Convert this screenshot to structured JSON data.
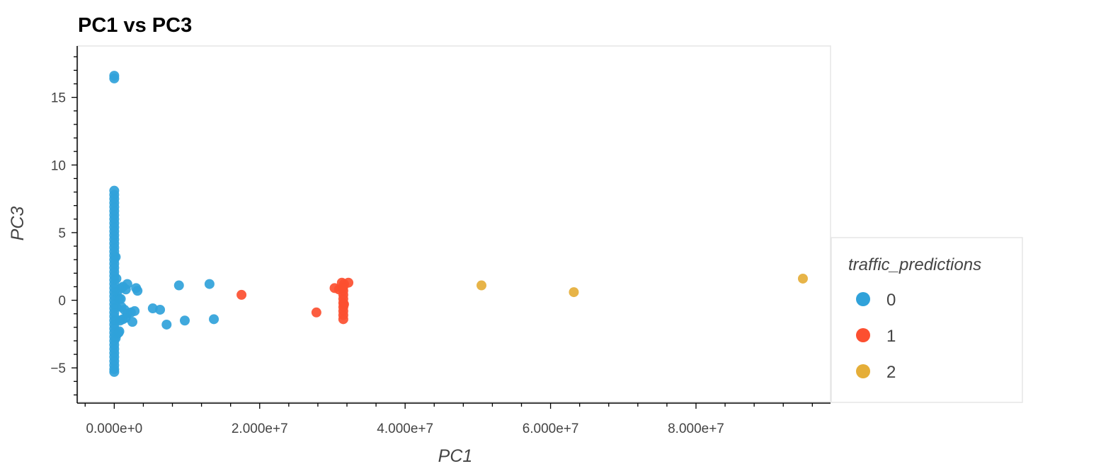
{
  "chart_data": {
    "type": "scatter",
    "title": "PC1 vs PC3",
    "xlabel": "PC1",
    "ylabel": "PC3",
    "xlim": [
      -5000000,
      98500000
    ],
    "ylim": [
      -7.5,
      18.8
    ],
    "x_ticks": [
      {
        "value": 0,
        "label": "0.000e+0"
      },
      {
        "value": 20000000,
        "label": "2.000e+7"
      },
      {
        "value": 40000000,
        "label": "4.000e+7"
      },
      {
        "value": 60000000,
        "label": "6.000e+7"
      },
      {
        "value": 80000000,
        "label": "8.000e+7"
      }
    ],
    "y_ticks": [
      {
        "value": -5,
        "label": "−5"
      },
      {
        "value": 0,
        "label": "0"
      },
      {
        "value": 5,
        "label": "5"
      },
      {
        "value": 10,
        "label": "10"
      },
      {
        "value": 15,
        "label": "15"
      }
    ],
    "grid": false,
    "legend": {
      "title": "traffic_predictions",
      "position": "right"
    },
    "series": [
      {
        "name": "0",
        "color": "#30a2da",
        "points": [
          [
            0,
            16.6
          ],
          [
            0,
            16.4
          ],
          [
            0,
            8.1
          ],
          [
            0,
            7.8
          ],
          [
            0,
            7.5
          ],
          [
            0,
            7.2
          ],
          [
            0,
            6.9
          ],
          [
            0,
            6.6
          ],
          [
            0,
            6.3
          ],
          [
            0,
            6.0
          ],
          [
            0,
            5.7
          ],
          [
            0,
            5.4
          ],
          [
            0,
            5.1
          ],
          [
            0,
            4.8
          ],
          [
            0,
            4.5
          ],
          [
            0,
            4.2
          ],
          [
            0,
            3.9
          ],
          [
            0,
            3.6
          ],
          [
            0,
            3.3
          ],
          [
            0,
            3.0
          ],
          [
            0,
            2.7
          ],
          [
            0,
            2.4
          ],
          [
            0,
            2.1
          ],
          [
            0,
            1.8
          ],
          [
            0,
            1.5
          ],
          [
            0,
            1.2
          ],
          [
            0,
            0.9
          ],
          [
            0,
            0.6
          ],
          [
            0,
            0.3
          ],
          [
            0,
            0.0
          ],
          [
            0,
            -0.3
          ],
          [
            0,
            -0.6
          ],
          [
            0,
            -0.9
          ],
          [
            0,
            -1.2
          ],
          [
            0,
            -1.5
          ],
          [
            0,
            -1.8
          ],
          [
            0,
            -2.1
          ],
          [
            0,
            -2.4
          ],
          [
            0,
            -2.7
          ],
          [
            0,
            -3.0
          ],
          [
            0,
            -3.3
          ],
          [
            0,
            -3.6
          ],
          [
            0,
            -3.9
          ],
          [
            0,
            -4.2
          ],
          [
            0,
            -4.5
          ],
          [
            0,
            -4.8
          ],
          [
            0,
            -5.1
          ],
          [
            0,
            -5.3
          ],
          [
            200000,
            3.2
          ],
          [
            300000,
            1.6
          ],
          [
            400000,
            0.6
          ],
          [
            300000,
            -0.5
          ],
          [
            250000,
            -1.5
          ],
          [
            400000,
            -2.5
          ],
          [
            200000,
            -2.8
          ],
          [
            600000,
            -2.4
          ],
          [
            700000,
            -2.3
          ],
          [
            1000000,
            0.9
          ],
          [
            1200000,
            1.0
          ],
          [
            1800000,
            1.2
          ],
          [
            1600000,
            0.8
          ],
          [
            500000,
            0.2
          ],
          [
            700000,
            0.1
          ],
          [
            900000,
            0.1
          ],
          [
            1000000,
            -0.5
          ],
          [
            1400000,
            -0.7
          ],
          [
            1800000,
            -1.0
          ],
          [
            1600000,
            -1.3
          ],
          [
            2300000,
            -0.9
          ],
          [
            2800000,
            -0.8
          ],
          [
            2500000,
            -1.6
          ],
          [
            1200000,
            -1.4
          ],
          [
            800000,
            -1.5
          ],
          [
            3000000,
            0.9
          ],
          [
            3200000,
            0.7
          ],
          [
            5300000,
            -0.6
          ],
          [
            6300000,
            -0.7
          ],
          [
            7200000,
            -1.8
          ],
          [
            9700000,
            -1.5
          ],
          [
            8900000,
            1.1
          ],
          [
            13100000,
            1.2
          ],
          [
            13700000,
            -1.4
          ]
        ]
      },
      {
        "name": "1",
        "color": "#fc4f30",
        "points": [
          [
            17500000,
            0.4
          ],
          [
            27800000,
            -0.9
          ],
          [
            30300000,
            0.9
          ],
          [
            30900000,
            0.8
          ],
          [
            31300000,
            1.3
          ],
          [
            31600000,
            1.2
          ],
          [
            32200000,
            1.3
          ],
          [
            31500000,
            1.0
          ],
          [
            31500000,
            0.7
          ],
          [
            31500000,
            0.4
          ],
          [
            31500000,
            0.1
          ],
          [
            31500000,
            -0.2
          ],
          [
            31500000,
            -0.5
          ],
          [
            31500000,
            -0.8
          ],
          [
            31500000,
            -1.1
          ],
          [
            31500000,
            -1.4
          ],
          [
            31400000,
            0.9
          ],
          [
            31600000,
            -0.3
          ]
        ]
      },
      {
        "name": "2",
        "color": "#e5ae38",
        "points": [
          [
            50500000,
            1.1
          ],
          [
            63200000,
            0.6
          ],
          [
            94700000,
            1.6
          ]
        ]
      }
    ]
  }
}
